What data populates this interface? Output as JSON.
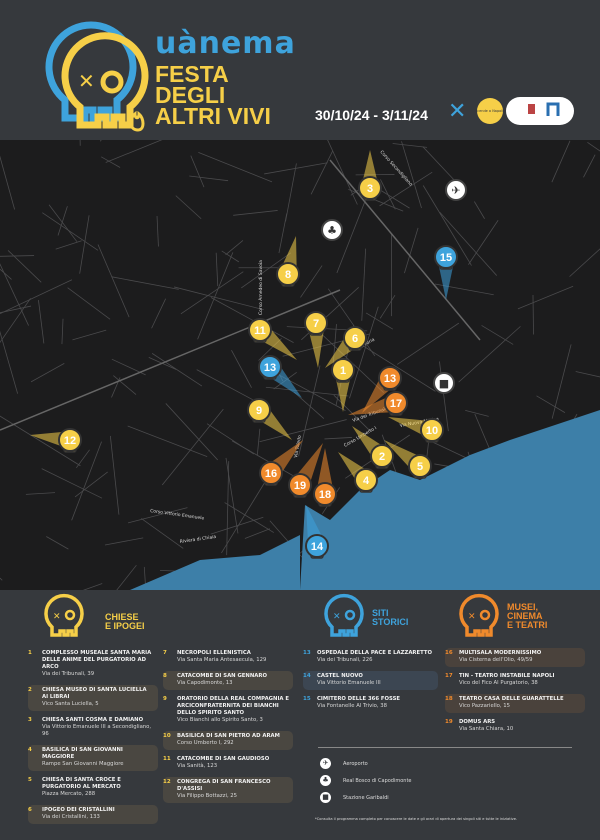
{
  "header": {
    "brand": "uànema",
    "title_lines": [
      "FESTA",
      "DEGLI",
      "ALTRI VIVI"
    ],
    "dates": "30/10/24 - 3/11/24",
    "sponsor_badge": "scende a Napoli!"
  },
  "colors": {
    "yellow": "#f6cf48",
    "blue": "#3ea3dc",
    "orange": "#f08a2c",
    "background": "#36393d",
    "map": "#1c1c1d",
    "sea": "#3d7fa8"
  },
  "map": {
    "street_labels": [
      "Corso Secondigliano",
      "Corso Amedeo di Savoia",
      "Via Foria",
      "Via dei Tribunali",
      "Corso Umberto I",
      "Via Nuova Marina",
      "Via Toledo",
      "Corso Vittorio Emanuele",
      "Riviera di Chiaia"
    ],
    "landmark_icons": [
      "airplane-icon",
      "tree-icon",
      "train-icon"
    ]
  },
  "legend": {
    "categories": [
      {
        "name": "CHIESE E IPOGEI",
        "lines": [
          "CHIESE",
          "E IPOGEI"
        ],
        "color": "#f6cf48"
      },
      {
        "name": "SITI STORICI",
        "lines": [
          "SITI",
          "STORICI"
        ],
        "color": "#3ea3dc"
      },
      {
        "name": "MUSEI, CINEMA E TEATRI",
        "lines": [
          "MUSEI,",
          "CINEMA",
          "E TEATRI"
        ],
        "color": "#f08a2c"
      }
    ],
    "sites": [
      {
        "num": "1",
        "name": "COMPLESSO MUSEALE SANTA MARIA DELLE ANIME DEL PURGATORIO AD ARCO",
        "address": "Via dei Tribunali, 39",
        "cat": 0
      },
      {
        "num": "2",
        "name": "CHIESA MUSEO DI SANTA LUCIELLA AI LIBRAI",
        "address": "Vico Santa Luciella, 5",
        "cat": 0
      },
      {
        "num": "3",
        "name": "CHIESA SANTI COSMA E DAMIANO",
        "address": "Via Vittorio Emanuele III a Secondigliano, 96",
        "cat": 0
      },
      {
        "num": "4",
        "name": "BASILICA DI SAN GIOVANNI MAGGIORE",
        "address": "Rampe San Giovanni Maggiore",
        "cat": 0
      },
      {
        "num": "5",
        "name": "CHIESA DI SANTA CROCE E PURGATORIO AL MERCATO",
        "address": "Piazza Mercato, 288",
        "cat": 0
      },
      {
        "num": "6",
        "name": "IPOGEO DEI CRISTALLINI",
        "address": "Via dei Cristallini, 133",
        "cat": 0
      },
      {
        "num": "7",
        "name": "NECROPOLI ELLENISTICA",
        "address": "Via Santa Maria Antesaecula, 129",
        "cat": 0
      },
      {
        "num": "8",
        "name": "CATACOMBE DI SAN GENNARO",
        "address": "Via Capodimonte, 13",
        "cat": 0
      },
      {
        "num": "9",
        "name": "ORATORIO DELLA REAL COMPAGNIA E ARCICONFRATERNITA DEI BIANCHI DELLO SPIRITO SANTO",
        "address": "Vico Bianchi allo Spirito Santo, 3",
        "cat": 0
      },
      {
        "num": "10",
        "name": "BASILICA DI SAN PIETRO AD ARAM",
        "address": "Corso Umberto I, 292",
        "cat": 0
      },
      {
        "num": "11",
        "name": "CATACOMBE DI SAN GAUDIOSO",
        "address": "Via Sanità, 123",
        "cat": 0
      },
      {
        "num": "12",
        "name": "CONGREGA DI SAN FRANCESCO D'ASSISI",
        "address": "Via Filippo Bottazzi, 25",
        "cat": 0
      },
      {
        "num": "13",
        "name": "OSPEDALE DELLA PACE E LAZZARETTO",
        "address": "Via dei Tribunali, 226",
        "cat": 1
      },
      {
        "num": "14",
        "name": "CASTEL NUOVO",
        "address": "Via Vittorio Emanuele III",
        "cat": 1
      },
      {
        "num": "15",
        "name": "CIMITERO DELLE 366 FOSSE",
        "address": "Via Fontanelle Al Trivio, 38",
        "cat": 1
      },
      {
        "num": "16",
        "name": "MULTISALA MODERNISSIMO",
        "address": "Via Cisterna dell'Olio, 49/59",
        "cat": 2
      },
      {
        "num": "17",
        "name": "TIN - TEATRO INSTABILE NAPOLI",
        "address": "Vico del Fico Al Purgatorio, 38",
        "cat": 2
      },
      {
        "num": "18",
        "name": "TEATRO CASA DELLE GUARATTELLE",
        "address": "Vico Pazzariello, 15",
        "cat": 2
      },
      {
        "num": "19",
        "name": "DOMUS ARS",
        "address": "Via Santa Chiara, 10",
        "cat": 2
      }
    ],
    "landmarks": [
      {
        "label": "Aeroporto",
        "icon": "airplane-icon"
      },
      {
        "label": "Real Bosco di Capodimonte",
        "icon": "tree-icon"
      },
      {
        "label": "Stazione Garibaldi",
        "icon": "train-icon"
      }
    ],
    "note": "*Consulta il programma completo per conoscere le date e gli orari di apertura dei singoli siti e tutte le iniziative."
  }
}
